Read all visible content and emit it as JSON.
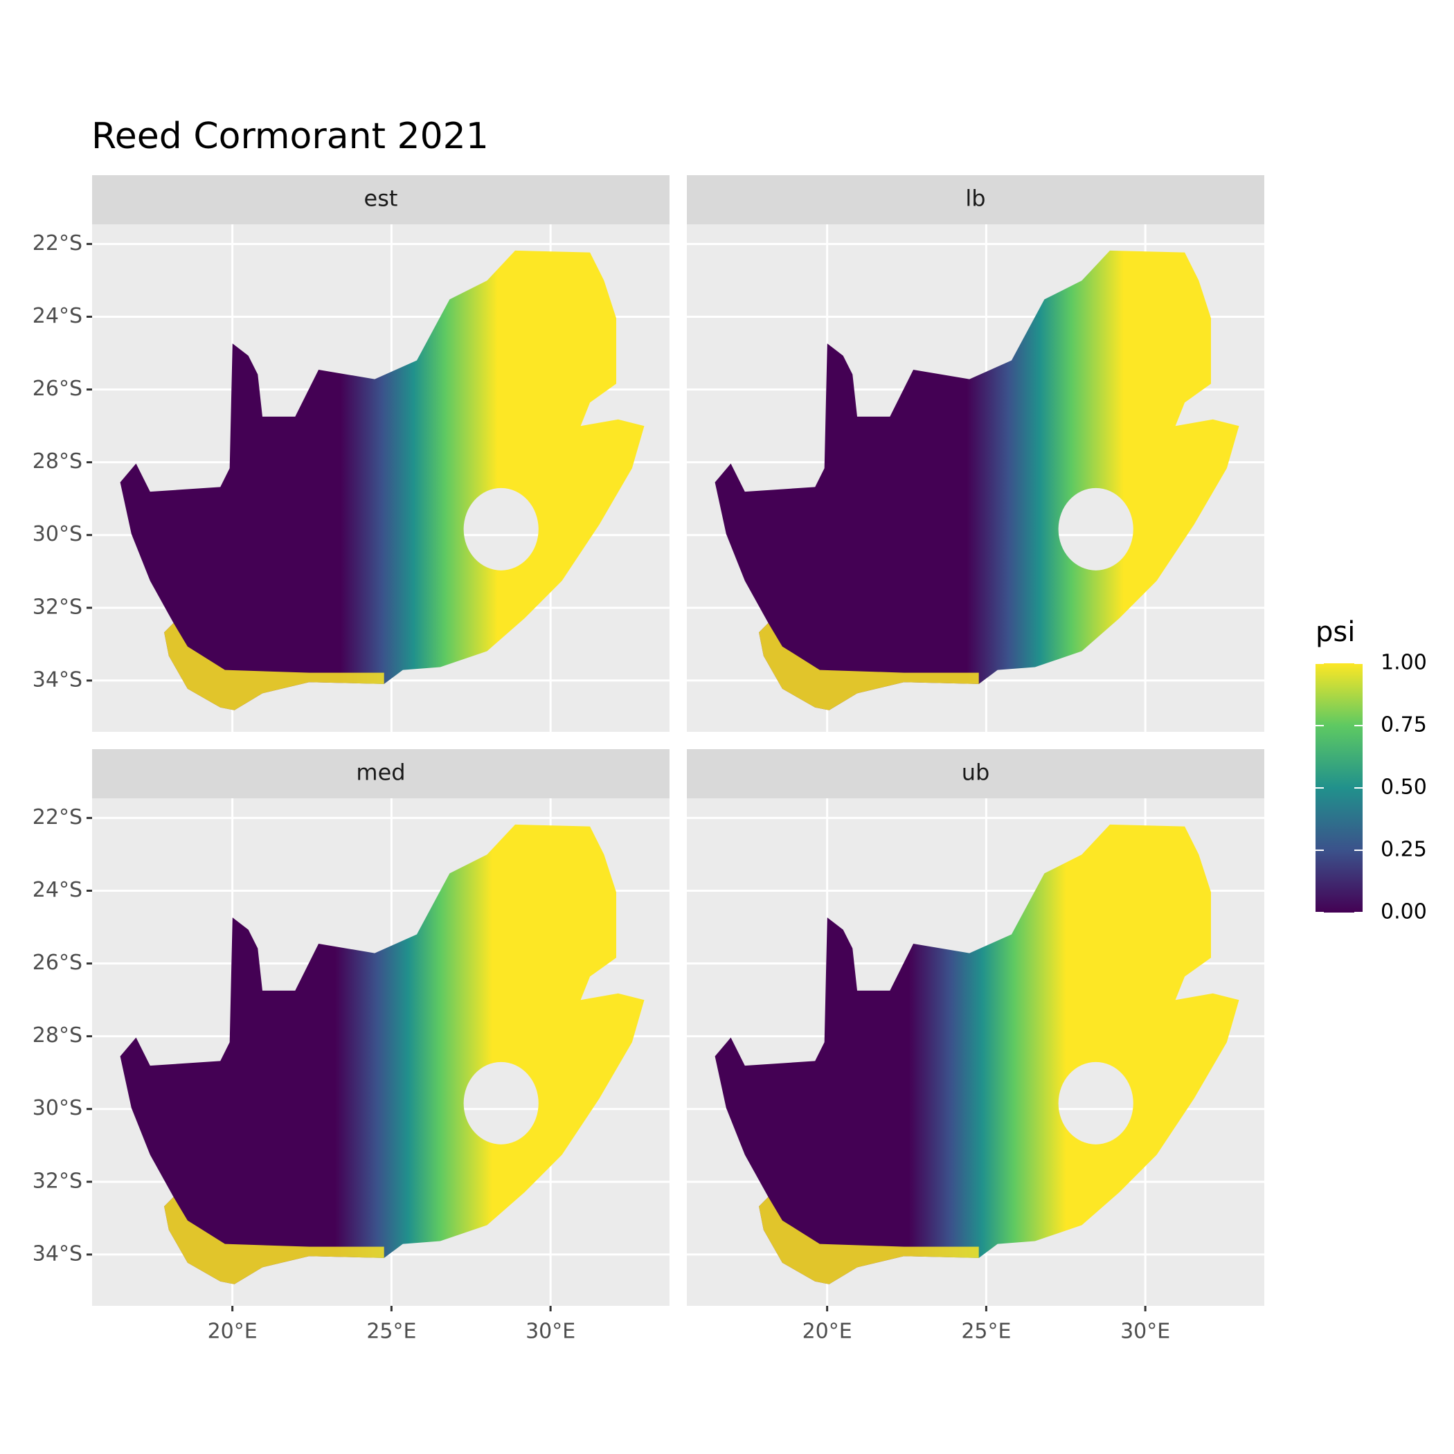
{
  "chart_data": {
    "type": "raster-map",
    "title": "Reed Cormorant 2021",
    "facets": [
      "est",
      "lb",
      "med",
      "ub"
    ],
    "xlim": [
      15.59,
      33.74
    ],
    "ylim": [
      -35.41,
      -21.46
    ],
    "xticks": [
      {
        "value": 20,
        "label": "20°E"
      },
      {
        "value": 25,
        "label": "25°E"
      },
      {
        "value": 30,
        "label": "30°E"
      }
    ],
    "yticks": [
      {
        "value": -22,
        "label": "22°S"
      },
      {
        "value": -24,
        "label": "24°S"
      },
      {
        "value": -26,
        "label": "26°S"
      },
      {
        "value": -28,
        "label": "28°S"
      },
      {
        "value": -30,
        "label": "30°S"
      },
      {
        "value": -32,
        "label": "32°S"
      },
      {
        "value": -34,
        "label": "34°S"
      }
    ],
    "grid": true,
    "legend": {
      "title": "psi",
      "limits": [
        0,
        1
      ],
      "ticks": [
        {
          "value": 0,
          "label": "0.00"
        },
        {
          "value": 0.25,
          "label": "0.25"
        },
        {
          "value": 0.5,
          "label": "0.50"
        },
        {
          "value": 0.75,
          "label": "0.75"
        },
        {
          "value": 1,
          "label": "1.00"
        }
      ],
      "colors": [
        "#440154",
        "#3b528b",
        "#21918c",
        "#5ec962",
        "#fde725"
      ]
    }
  }
}
